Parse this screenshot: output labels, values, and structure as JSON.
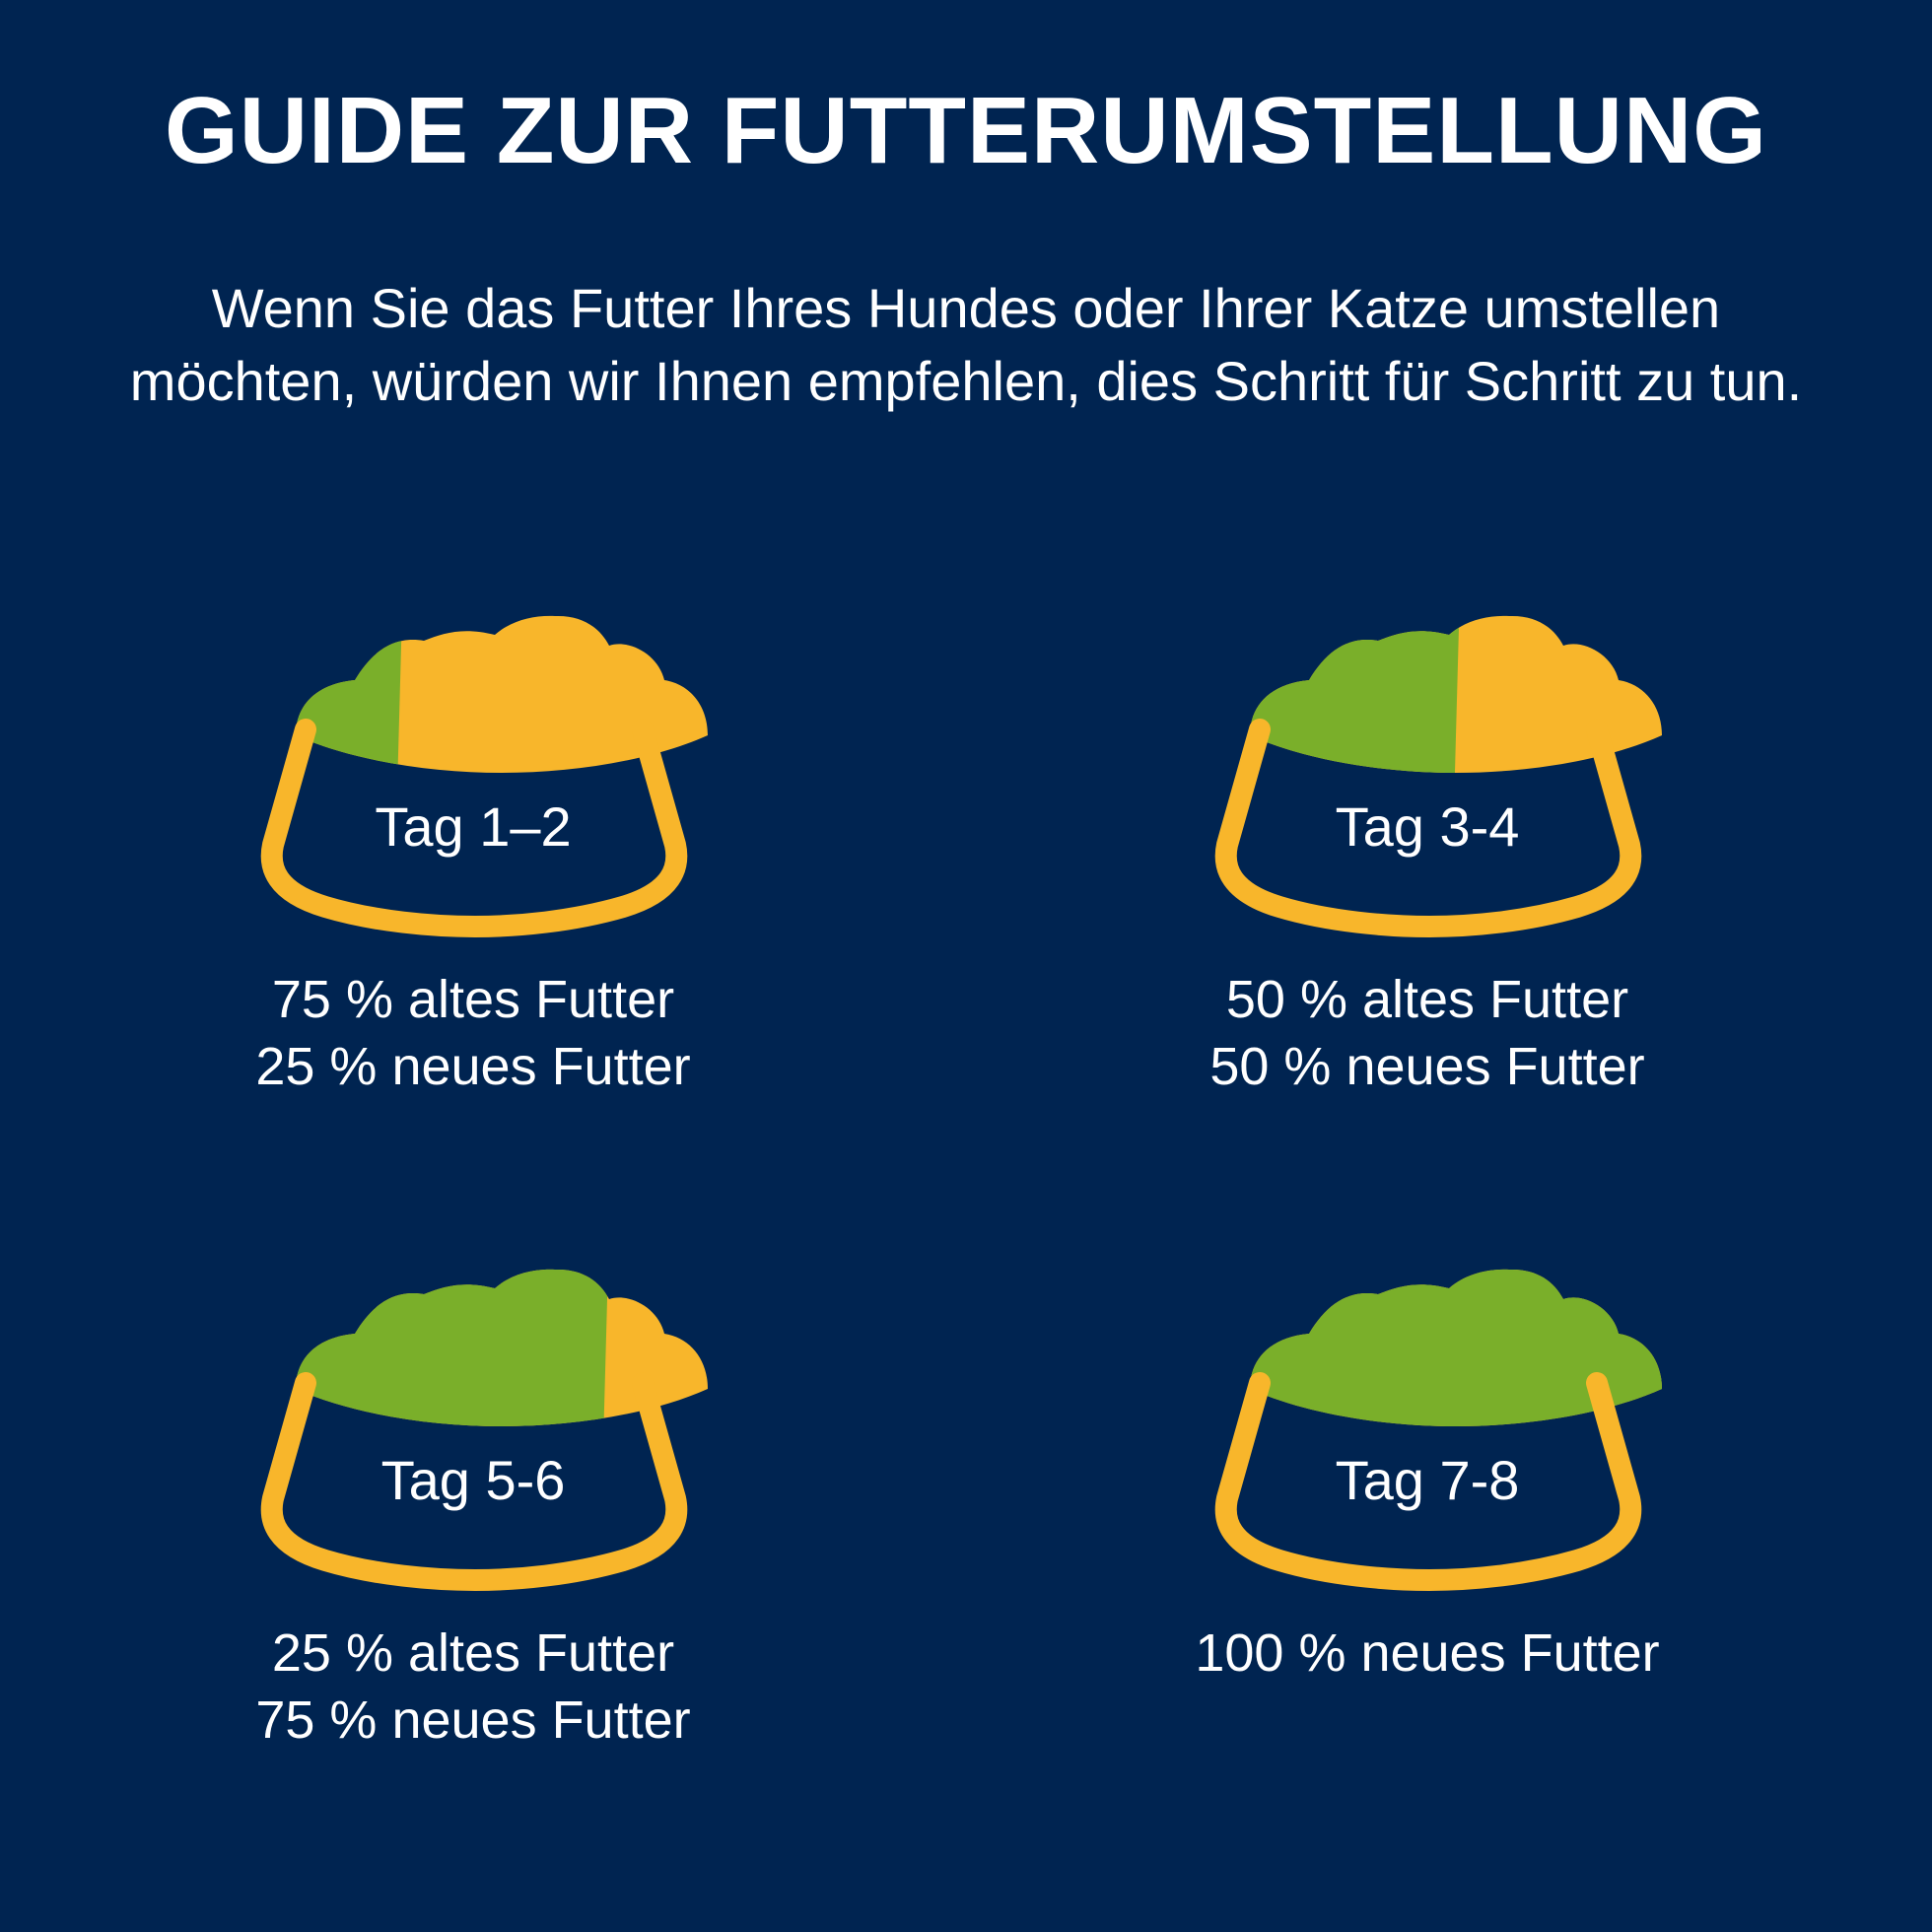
{
  "title": "GUIDE ZUR FUTTERUMSTELLUNG",
  "intro": "Wenn Sie das Futter Ihres Hundes oder Ihrer Katze umstellen möchten, würden wir Ihnen empfehlen, dies Schritt für Schritt zu tun.",
  "colors": {
    "background": "#002451",
    "new_food": "#7AAF2A",
    "old_food": "#F8B62B",
    "bowl_outline": "#F8B62B"
  },
  "steps": [
    {
      "day": "Tag 1–2",
      "lines": [
        "75 % altes Futter",
        "25 % neues Futter"
      ],
      "new_food_fraction": 0.25,
      "icon": "food-bowl-icon"
    },
    {
      "day": "Tag 3-4",
      "lines": [
        "50 % altes Futter",
        "50 % neues Futter"
      ],
      "new_food_fraction": 0.5,
      "icon": "food-bowl-icon"
    },
    {
      "day": "Tag 5-6",
      "lines": [
        "25 % altes Futter",
        "75 % neues Futter"
      ],
      "new_food_fraction": 0.75,
      "icon": "food-bowl-icon"
    },
    {
      "day": "Tag 7-8",
      "lines": [
        "100 % neues Futter"
      ],
      "new_food_fraction": 1.0,
      "icon": "food-bowl-icon"
    }
  ]
}
